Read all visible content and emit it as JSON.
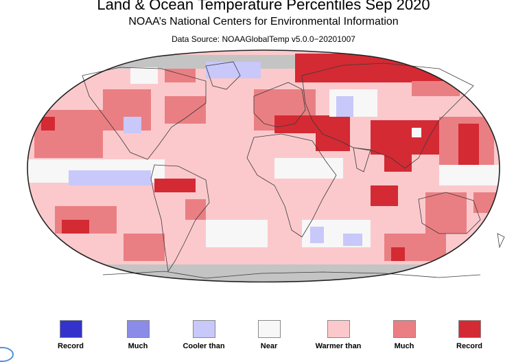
{
  "header": {
    "title": "Land & Ocean Temperature Percentiles Sep 2020",
    "subtitle": "NOAA’s National Centers for Environmental Information",
    "source": "Data Source: NOAAGlobalTemp v5.0.0−20201007"
  },
  "colors": {
    "record_cold": "#3333cc",
    "much_cooler": "#8b8be8",
    "cooler": "#c8c8fa",
    "near": "#f7f7f7",
    "warmer": "#fbc9cc",
    "much_warmer": "#ea7f83",
    "record_warm": "#d42a33",
    "no_data": "#c4c4c4",
    "land_border": "#3a3a3a"
  },
  "legend": {
    "items": [
      {
        "label": "Record",
        "color": "#3333cc"
      },
      {
        "label": "Much",
        "color": "#8b8be8"
      },
      {
        "label": "Cooler than",
        "color": "#c8c8fa"
      },
      {
        "label": "Near",
        "color": "#f7f7f7"
      },
      {
        "label": "Warmer than",
        "color": "#fbc9cc"
      },
      {
        "label": "Much",
        "color": "#ea7f83"
      },
      {
        "label": "Record",
        "color": "#d42a33"
      }
    ]
  }
}
